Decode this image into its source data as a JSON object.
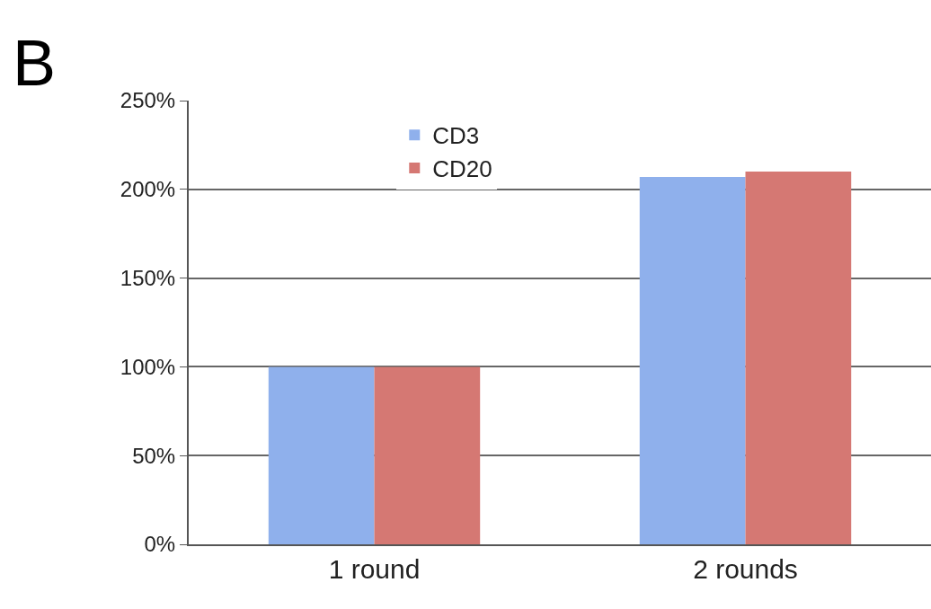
{
  "chart_data": {
    "type": "bar",
    "categories": [
      "1 round",
      "2 rounds"
    ],
    "series": [
      {
        "name": "CD3",
        "color": "#8fb0ec",
        "values": [
          100,
          207
        ]
      },
      {
        "name": "CD20",
        "color": "#d57873",
        "values": [
          100,
          210
        ]
      }
    ],
    "ylim": [
      0,
      250
    ],
    "yticks": [
      {
        "value": 0,
        "label": "0%"
      },
      {
        "value": 50,
        "label": "50%"
      },
      {
        "value": 100,
        "label": "100%"
      },
      {
        "value": 150,
        "label": "150%"
      },
      {
        "value": 200,
        "label": "200%"
      },
      {
        "value": 250,
        "label": "250%"
      }
    ],
    "grid": "y",
    "legend": "top left",
    "annotations": [
      "B"
    ]
  }
}
